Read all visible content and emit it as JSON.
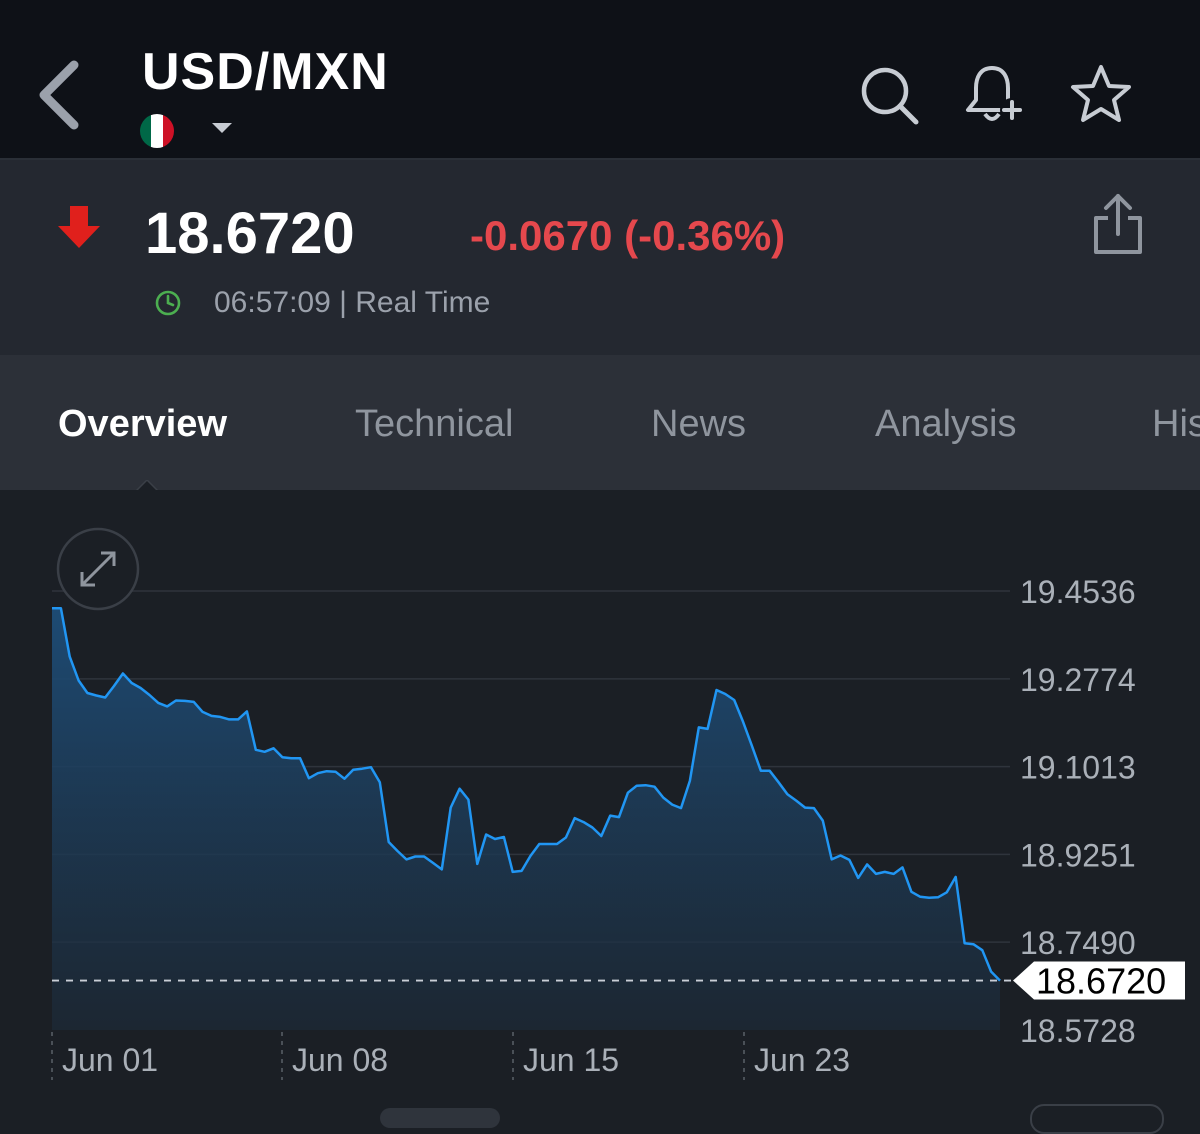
{
  "header": {
    "title": "USD/MXN",
    "flag_colors": [
      "#006847",
      "#ffffff",
      "#ce1126"
    ],
    "icons": [
      "chevron-left-icon",
      "caret-down-icon",
      "search-icon",
      "bell-plus-icon",
      "star-icon"
    ]
  },
  "quote": {
    "price": "18.6720",
    "change": "-0.0670 (-0.36%)",
    "time": "06:57:09 | Real Time",
    "direction": "down",
    "down_color": "#e5484d",
    "clock_color": "#4caf50"
  },
  "tabs": [
    {
      "label": "Overview",
      "active": true
    },
    {
      "label": "Technical",
      "active": false
    },
    {
      "label": "News",
      "active": false
    },
    {
      "label": "Analysis",
      "active": false
    },
    {
      "label": "His",
      "active": false
    }
  ],
  "chart_data": {
    "type": "area",
    "title": "",
    "xlabel": "",
    "ylabel": "",
    "ylim": [
      18.5728,
      19.4536
    ],
    "y_ticks": [
      "19.4536",
      "19.2774",
      "19.1013",
      "18.9251",
      "18.7490",
      "18.5728"
    ],
    "x_ticks": [
      "Jun 01",
      "Jun 08",
      "Jun 15",
      "Jun 23"
    ],
    "current_value": 18.672,
    "current_label": "18.6720",
    "line_color": "#2196f3",
    "grid": true,
    "series": [
      {
        "values": [
          19.419,
          19.419,
          19.322,
          19.274,
          19.249,
          19.244,
          19.24,
          19.263,
          19.288,
          19.269,
          19.259,
          19.245,
          19.229,
          19.222,
          19.234,
          19.233,
          19.231,
          19.211,
          19.203,
          19.201,
          19.196,
          19.196,
          19.212,
          19.135,
          19.131,
          19.138,
          19.12,
          19.118,
          19.118,
          19.078,
          19.088,
          19.092,
          19.091,
          19.077,
          19.095,
          19.097,
          19.1,
          19.07,
          18.95,
          18.932,
          18.915,
          18.921,
          18.921,
          18.908,
          18.895,
          19.019,
          19.057,
          19.035,
          18.906,
          18.965,
          18.956,
          18.96,
          18.89,
          18.892,
          18.922,
          18.946,
          18.946,
          18.946,
          18.959,
          18.998,
          18.99,
          18.979,
          18.962,
          19.003,
          19.0,
          19.049,
          19.063,
          19.064,
          19.061,
          19.039,
          19.025,
          19.018,
          19.073,
          19.18,
          19.177,
          19.255,
          19.247,
          19.235,
          19.191,
          19.143,
          19.093,
          19.093,
          19.07,
          19.046,
          19.033,
          19.019,
          19.018,
          18.993,
          18.915,
          18.923,
          18.914,
          18.878,
          18.905,
          18.886,
          18.89,
          18.886,
          18.899,
          18.85,
          18.84,
          18.838,
          18.839,
          18.849,
          18.88,
          18.747,
          18.745,
          18.733,
          18.69,
          18.672
        ]
      }
    ]
  }
}
